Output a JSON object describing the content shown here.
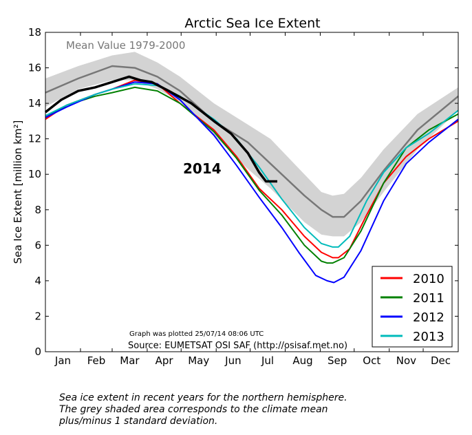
{
  "chart_data": {
    "type": "line",
    "title": "Arctic Sea Ice Extent",
    "ylabel": "Sea Ice Extent [million km²]",
    "ylim": [
      0,
      18
    ],
    "yticks": [
      0,
      2,
      4,
      6,
      8,
      10,
      12,
      14,
      16,
      18
    ],
    "xlim": [
      1,
      366
    ],
    "months": [
      "Jan",
      "Feb",
      "Mar",
      "Apr",
      "May",
      "Jun",
      "Jul",
      "Aug",
      "Sep",
      "Oct",
      "Nov",
      "Dec"
    ],
    "mean_label": "Mean Value 1979-2000",
    "year_label": "2014",
    "plotted_note": "Graph was plotted 25/07/14 08:06 UTC",
    "source_note": "Source: EUMETSAT OSI SAF (http://osisaf.met.no)",
    "grid": false,
    "legend_position": "lower-right",
    "mean": {
      "color": "#777777",
      "x": [
        1,
        30,
        60,
        80,
        100,
        120,
        150,
        180,
        200,
        230,
        245,
        255,
        265,
        280,
        300,
        330,
        366
      ],
      "y": [
        14.6,
        15.4,
        16.1,
        16.0,
        15.5,
        14.7,
        13.0,
        11.8,
        10.6,
        8.8,
        8.0,
        7.6,
        7.6,
        8.5,
        10.2,
        12.5,
        14.4
      ]
    },
    "std_band": {
      "color": "#d3d3d3",
      "x": [
        1,
        30,
        60,
        80,
        100,
        120,
        150,
        180,
        200,
        230,
        245,
        255,
        265,
        280,
        300,
        330,
        366
      ],
      "lower": [
        13.8,
        14.8,
        15.3,
        15.3,
        14.8,
        14.1,
        12.2,
        10.3,
        9.2,
        7.3,
        6.6,
        6.5,
        6.5,
        7.3,
        9.0,
        11.4,
        13.6
      ],
      "upper": [
        15.4,
        16.1,
        16.7,
        16.9,
        16.3,
        15.5,
        14.0,
        12.8,
        12.0,
        10.0,
        9.0,
        8.8,
        8.9,
        9.8,
        11.4,
        13.4,
        14.9
      ]
    },
    "series": [
      {
        "name": "2010",
        "color": "#ff0000",
        "x": [
          1,
          20,
          45,
          60,
          80,
          100,
          120,
          150,
          170,
          190,
          210,
          230,
          245,
          255,
          260,
          270,
          285,
          300,
          320,
          340,
          366
        ],
        "y": [
          13.1,
          13.9,
          14.5,
          14.8,
          15.3,
          15.1,
          14.0,
          12.5,
          11.0,
          9.2,
          8.0,
          6.5,
          5.6,
          5.3,
          5.3,
          5.8,
          7.7,
          9.5,
          11.0,
          12.0,
          13.0
        ]
      },
      {
        "name": "2011",
        "color": "#008000",
        "x": [
          1,
          20,
          45,
          60,
          80,
          100,
          120,
          150,
          170,
          190,
          210,
          230,
          245,
          250,
          255,
          265,
          280,
          300,
          320,
          340,
          366
        ],
        "y": [
          13.2,
          13.9,
          14.4,
          14.6,
          14.9,
          14.7,
          14.0,
          12.4,
          10.9,
          9.1,
          7.7,
          6.0,
          5.1,
          5.0,
          5.0,
          5.3,
          6.8,
          9.5,
          11.5,
          12.5,
          13.4
        ]
      },
      {
        "name": "2012",
        "color": "#0000ff",
        "x": [
          1,
          20,
          45,
          60,
          80,
          100,
          120,
          150,
          170,
          190,
          210,
          225,
          240,
          250,
          256,
          265,
          280,
          300,
          320,
          340,
          366
        ],
        "y": [
          13.2,
          13.8,
          14.5,
          14.8,
          15.2,
          15.1,
          14.2,
          12.2,
          10.5,
          8.7,
          7.0,
          5.6,
          4.3,
          4.0,
          3.9,
          4.2,
          5.7,
          8.5,
          10.6,
          11.8,
          13.1
        ]
      },
      {
        "name": "2013",
        "color": "#00bbbb",
        "x": [
          1,
          20,
          45,
          60,
          80,
          100,
          120,
          150,
          170,
          190,
          210,
          230,
          245,
          255,
          260,
          270,
          285,
          300,
          320,
          340,
          366
        ],
        "y": [
          13.3,
          13.9,
          14.5,
          14.8,
          15.1,
          15.0,
          14.4,
          13.1,
          12.0,
          10.4,
          8.6,
          7.0,
          6.1,
          5.9,
          5.9,
          6.5,
          8.5,
          10.1,
          11.5,
          12.3,
          13.6
        ]
      },
      {
        "name": "2014",
        "color": "#000000",
        "x": [
          1,
          15,
          30,
          45,
          60,
          75,
          85,
          95,
          110,
          130,
          150,
          165,
          180,
          190,
          196,
          200,
          206
        ],
        "y": [
          13.5,
          14.2,
          14.7,
          14.9,
          15.2,
          15.5,
          15.3,
          15.2,
          14.7,
          14.0,
          13.0,
          12.3,
          11.2,
          10.1,
          9.6,
          9.6,
          9.6
        ]
      }
    ]
  },
  "caption_lines": [
    "Sea ice extent in recent years for the northern hemisphere.",
    "The grey shaded area corresponds to the climate mean",
    "plus/minus 1 standard deviation."
  ]
}
